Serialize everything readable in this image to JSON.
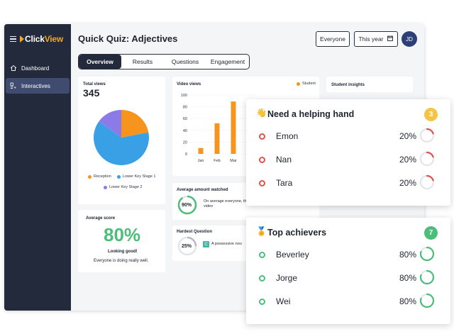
{
  "app": {
    "logo_prefix": "Click",
    "logo_suffix": "View",
    "brand_color": "#f5a623",
    "sidebar_color": "#232a3c"
  },
  "sidebar": {
    "items": [
      {
        "label": "Dashboard",
        "icon": "home-icon"
      },
      {
        "label": "Interactives",
        "icon": "interactive-icon",
        "active": true
      }
    ]
  },
  "header": {
    "title": "Quick Quiz: Adjectives",
    "audience": "Everyone",
    "period": "This year",
    "avatar": "JD"
  },
  "tabs": [
    {
      "label": "Overview",
      "active": true
    },
    {
      "label": "Results"
    },
    {
      "label": "Questions"
    },
    {
      "label": "Engagement"
    }
  ],
  "total_views": {
    "label": "Total views",
    "value": "345",
    "chart_data": {
      "type": "pie",
      "labels": [
        "Reception",
        "Lower Key Stage 1",
        "Lower Key Stage 2"
      ],
      "values": [
        22,
        63,
        15
      ],
      "colors": [
        "#f7941d",
        "#3aa0e6",
        "#8b7be8"
      ]
    }
  },
  "video_views": {
    "label": "Video views",
    "legend": "Student",
    "color": "#f7941d",
    "chart_data": {
      "type": "bar",
      "categories": [
        "Jan",
        "Feb",
        "Mar"
      ],
      "values": [
        10,
        52,
        89
      ],
      "ylim": [
        0,
        100
      ],
      "yticks": [
        "100",
        "80",
        "60",
        "40",
        "20",
        "0"
      ]
    }
  },
  "student_insights": {
    "label": "Student insights"
  },
  "average_watched": {
    "label": "Average amount watched",
    "value": "90%",
    "note": "On average everyone, th",
    "note2": "video",
    "percent": 90
  },
  "average_score": {
    "label": "Average score",
    "value": "80%",
    "message": "Looking good!",
    "detail": "Everyone is doing really well."
  },
  "hardest_question": {
    "label": "Hardest Question",
    "value": "25%",
    "badge": "C",
    "text": "A possessive nou",
    "percent": 25
  },
  "helping_hand": {
    "title": "Need a helping hand",
    "emoji": "👋",
    "count": "3",
    "color": "#e05252",
    "badge_color": "#f4c542",
    "students": [
      {
        "name": "Emon",
        "pct": "20%",
        "value": 20
      },
      {
        "name": "Nan",
        "pct": "20%",
        "value": 20
      },
      {
        "name": "Tara",
        "pct": "20%",
        "value": 20
      }
    ]
  },
  "top_achievers": {
    "title": "Top achievers",
    "emoji": "🏅",
    "count": "7",
    "color": "#4cbe7a",
    "badge_color": "#4cbe7a",
    "students": [
      {
        "name": "Beverley",
        "pct": "80%",
        "value": 80
      },
      {
        "name": "Jorge",
        "pct": "80%",
        "value": 80
      },
      {
        "name": "Wei",
        "pct": "80%",
        "value": 80
      }
    ]
  }
}
